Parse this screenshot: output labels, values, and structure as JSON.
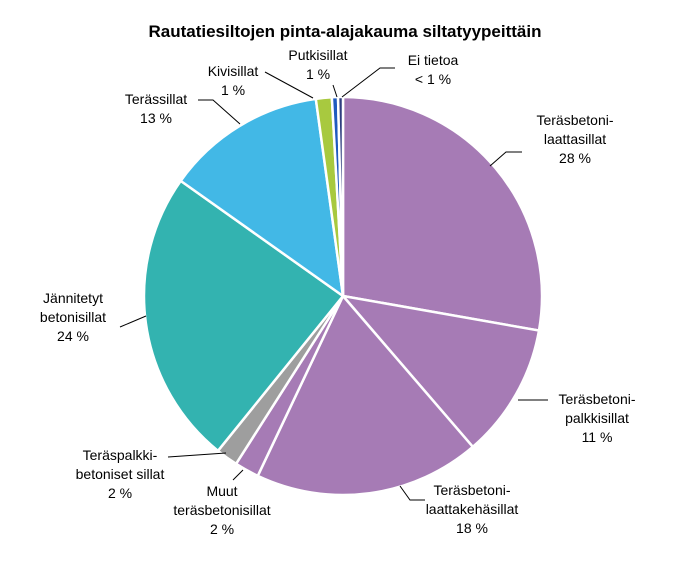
{
  "chart_data": {
    "type": "pie",
    "title": "Rautatiesiltojen pinta-alajakauma siltatyypeittäin",
    "slices": [
      {
        "label_lines": [
          "Teräsbetoni-",
          "laattasillat",
          "28 %"
        ],
        "value": 28.0,
        "color": "#a67bb5"
      },
      {
        "label_lines": [
          "Teräsbetoni-",
          "palkkisillat",
          "11 %"
        ],
        "value": 11.0,
        "color": "#a67bb5"
      },
      {
        "label_lines": [
          "Teräsbetoni-",
          "laattakehäsillat",
          "18 %"
        ],
        "value": 18.5,
        "color": "#a67bb5"
      },
      {
        "label_lines": [
          "Muut",
          "teräsbetonisillat",
          "2 %"
        ],
        "value": 2.0,
        "color": "#a67bb5"
      },
      {
        "label_lines": [
          "Teräspalkki-",
          "betoniset sillat",
          "2 %"
        ],
        "value": 1.8,
        "color": "#9e9e9e"
      },
      {
        "label_lines": [
          "Jännitetyt",
          "betonisillat",
          "24 %"
        ],
        "value": 24.2,
        "color": "#33b3b0"
      },
      {
        "label_lines": [
          "Terässillat",
          "13 %"
        ],
        "value": 13.1,
        "color": "#42b8e6"
      },
      {
        "label_lines": [
          "Kivisillat",
          "1 %"
        ],
        "value": 1.3,
        "color": "#a8c93f"
      },
      {
        "label_lines": [
          "Putkisillat",
          "1 %"
        ],
        "value": 0.5,
        "color": "#1f5bbf"
      },
      {
        "label_lines": [
          "Ei tietoa",
          "< 1 %"
        ],
        "value": 0.4,
        "color": "#2f3e7f"
      }
    ]
  }
}
